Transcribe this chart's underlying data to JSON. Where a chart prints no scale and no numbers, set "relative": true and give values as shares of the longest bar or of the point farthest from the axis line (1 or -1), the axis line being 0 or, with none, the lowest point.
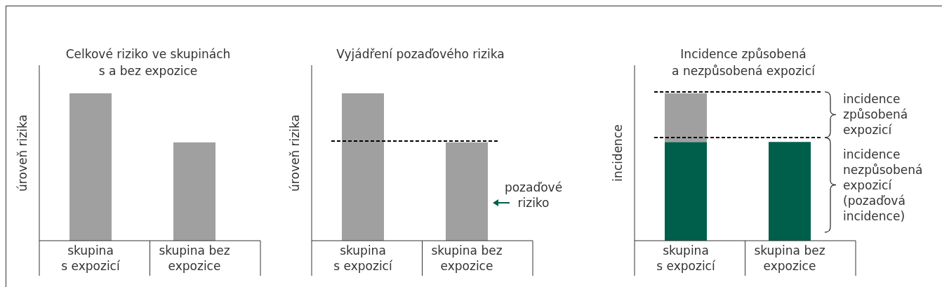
{
  "chart_data": [
    {
      "type": "bar",
      "title": "Celkové riziko ve skupinách\ns a bez expozice",
      "ylabel": "úroveň rizika",
      "categories": [
        "skupina\ns expozicí",
        "skupina bez\nexpozice"
      ],
      "relative": true,
      "series": [
        {
          "color": "#a0a0a1",
          "values": [
            1,
            0.667
          ]
        }
      ]
    },
    {
      "type": "bar",
      "title": "Vyjádření pozaďového rizika",
      "ylabel": "úroveň rizika",
      "categories": [
        "skupina\ns expozicí",
        "skupina bez\nexpozice"
      ],
      "relative": true,
      "series": [
        {
          "color": "#a0a0a1",
          "values": [
            1,
            0.667
          ]
        }
      ],
      "ref_lines": [
        {
          "axis": "y",
          "value": 0.676,
          "line_style": "dashed",
          "color": "#000000"
        }
      ],
      "annotations": [
        "pozaďové\nriziko"
      ]
    },
    {
      "type": "bar",
      "title": "Incidence způsobená\na nezpůsobená expozicí",
      "ylabel": "incidence",
      "categories": [
        "skupina\ns expozicí",
        "skupina bez\nexpozice"
      ],
      "relative": true,
      "stacked": true,
      "series": [
        {
          "color": "#005f4b",
          "values": [
            0.67,
            0.67
          ]
        },
        {
          "color": "#a0a0a1",
          "values": [
            0.33,
            null
          ]
        }
      ],
      "ref_lines": [
        {
          "axis": "y",
          "value": 1.01,
          "line_style": "dashed",
          "color": "#000000"
        },
        {
          "axis": "y",
          "value": 0.7,
          "line_style": "dashed",
          "color": "#000000"
        }
      ],
      "annotations": [
        "incidence\nzpůsobená\nexpozicí",
        "incidence\nnezpůsobená\nexpozicí\n(pozaďová\nincidence)"
      ]
    }
  ]
}
